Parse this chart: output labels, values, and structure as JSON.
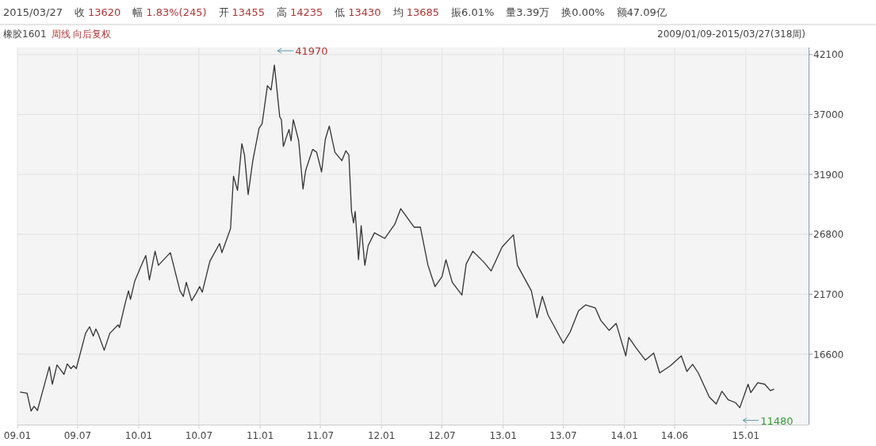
{
  "chart_data": {
    "type": "line",
    "title": "橡胶1601",
    "subtitle": "周线 向后复权",
    "annotations": [
      "2015/03/27",
      "收",
      "13620",
      "幅",
      "1.83%(245)",
      "开",
      "13455",
      "高",
      "14235",
      "低",
      "13430",
      "均",
      "13685",
      "振6.01%",
      "量3.39万",
      "换0.00%",
      "额47.09亿",
      "2009/01/09-2015/03/27(318周)",
      "41970",
      "11480"
    ],
    "x": [
      "2009-01-09",
      "2009-01-30",
      "2009-02-11",
      "2009-02-20",
      "2009-03-02",
      "2009-03-19",
      "2009-04-07",
      "2009-04-16",
      "2009-04-30",
      "2009-05-21",
      "2009-05-31",
      "2009-06-11",
      "2009-06-19",
      "2009-06-27",
      "2009-07-25",
      "2009-08-06",
      "2009-08-17",
      "2009-08-25",
      "2009-09-02",
      "2009-09-19",
      "2009-10-06",
      "2009-10-31",
      "2009-11-04",
      "2009-11-21",
      "2009-12-01",
      "2009-12-07",
      "2009-12-20",
      "2010-01-06",
      "2010-01-22",
      "2010-02-02",
      "2010-02-19",
      "2010-03-01",
      "2010-04-06",
      "2010-05-05",
      "2010-05-15",
      "2010-05-24",
      "2010-06-09",
      "2010-06-22",
      "2010-07-03",
      "2010-07-11",
      "2010-08-03",
      "2010-09-01",
      "2010-09-08",
      "2010-10-04",
      "2010-10-13",
      "2010-10-25",
      "2010-11-07",
      "2010-11-15",
      "2010-11-26",
      "2010-12-10",
      "2010-12-29",
      "2011-01-07",
      "2011-01-23",
      "2011-02-03",
      "2011-02-13",
      "2011-03-01",
      "2011-03-06",
      "2011-03-12",
      "2011-03-23",
      "2011-03-29",
      "2011-04-04",
      "2011-04-11",
      "2011-04-27",
      "2011-05-10",
      "2011-05-18",
      "2011-06-08",
      "2011-06-20",
      "2011-07-05",
      "2011-07-16",
      "2011-07-28",
      "2011-08-14",
      "2011-09-04",
      "2011-09-16",
      "2011-09-25",
      "2011-10-03",
      "2011-10-09",
      "2011-10-14",
      "2011-10-24",
      "2011-11-01",
      "2011-11-12",
      "2011-11-22",
      "2011-12-11",
      "2012-01-11",
      "2012-02-10",
      "2012-02-28",
      "2012-04-08",
      "2012-04-27",
      "2012-05-20",
      "2012-06-10",
      "2012-07-01",
      "2012-07-13",
      "2012-08-01",
      "2012-08-30",
      "2012-09-12",
      "2012-10-02",
      "2012-11-05",
      "2012-11-26",
      "2012-12-29",
      "2013-02-01",
      "2013-02-13",
      "2013-03-27",
      "2013-04-13",
      "2013-04-29",
      "2013-05-16",
      "2013-07-01",
      "2013-07-22",
      "2013-08-16",
      "2013-09-06",
      "2013-10-05",
      "2013-10-22",
      "2013-11-16",
      "2013-12-07",
      "2014-01-05",
      "2014-01-14",
      "2014-02-04",
      "2014-03-05",
      "2014-03-30",
      "2014-04-17",
      "2014-05-19",
      "2014-06-21",
      "2014-07-08",
      "2014-07-25",
      "2014-08-11",
      "2014-09-13",
      "2014-10-04",
      "2014-10-21",
      "2014-11-09",
      "2014-12-01",
      "2014-12-14",
      "2015-01-08",
      "2015-01-16",
      "2015-02-06",
      "2015-02-27",
      "2015-03-16",
      "2015-03-27"
    ],
    "series": [
      {
        "color": "#333333",
        "values": [
          13370,
          13270,
          11750,
          12160,
          11800,
          13560,
          15530,
          14040,
          15680,
          14880,
          15770,
          15370,
          15610,
          15370,
          18380,
          18930,
          18140,
          18740,
          18260,
          16930,
          18380,
          19100,
          18860,
          20910,
          21990,
          21270,
          22830,
          23970,
          25000,
          22910,
          25360,
          24160,
          25240,
          21990,
          21510,
          22710,
          21150,
          21750,
          22350,
          21870,
          24520,
          26010,
          25240,
          27290,
          31750,
          30540,
          34520,
          33550,
          30180,
          33070,
          35840,
          36200,
          39450,
          39090,
          41210,
          36810,
          36560,
          34280,
          35240,
          35720,
          34760,
          36560,
          34760,
          30660,
          32230,
          34030,
          33790,
          32110,
          34880,
          36010,
          33790,
          33070,
          33910,
          33550,
          28740,
          27770,
          28740,
          24640,
          27530,
          24160,
          25840,
          26930,
          26450,
          27650,
          28980,
          27410,
          27410,
          24160,
          22350,
          23190,
          24640,
          22710,
          21630,
          24280,
          25360,
          24400,
          23680,
          25720,
          26760,
          24160,
          21990,
          19700,
          21510,
          19940,
          17530,
          18500,
          20300,
          20790,
          20540,
          19460,
          18620,
          19220,
          16450,
          18020,
          17170,
          16090,
          16690,
          15000,
          15610,
          16450,
          15120,
          15730,
          15000,
          12960,
          12350,
          13440,
          12720,
          12470,
          12040,
          14040,
          13320,
          14160,
          14040,
          13490,
          13620
        ]
      }
    ],
    "xlim": [
      "2009-01-01",
      "2015-07-09"
    ],
    "xticks": [
      {
        "value": "2009-01",
        "label": "09.01"
      },
      {
        "value": "2009-07",
        "label": "09.07"
      },
      {
        "value": "2010-01",
        "label": "10.01"
      },
      {
        "value": "2010-07",
        "label": "10.07"
      },
      {
        "value": "2011-01",
        "label": "11.01"
      },
      {
        "value": "2011-07",
        "label": "11.07"
      },
      {
        "value": "2012-01",
        "label": "12.01"
      },
      {
        "value": "2012-07",
        "label": "12.07"
      },
      {
        "value": "2013-01",
        "label": "13.01"
      },
      {
        "value": "2013-07",
        "label": "13.07"
      },
      {
        "value": "2014-01",
        "label": "14.01"
      },
      {
        "value": "2014-06",
        "label": "14.06"
      },
      {
        "value": "2015-01",
        "label": "15.01"
      }
    ],
    "ylim": [
      10600,
      42700
    ],
    "yticks": [
      16600,
      21700,
      26800,
      31900,
      37000,
      42100
    ],
    "grid": true,
    "marker": "none"
  }
}
